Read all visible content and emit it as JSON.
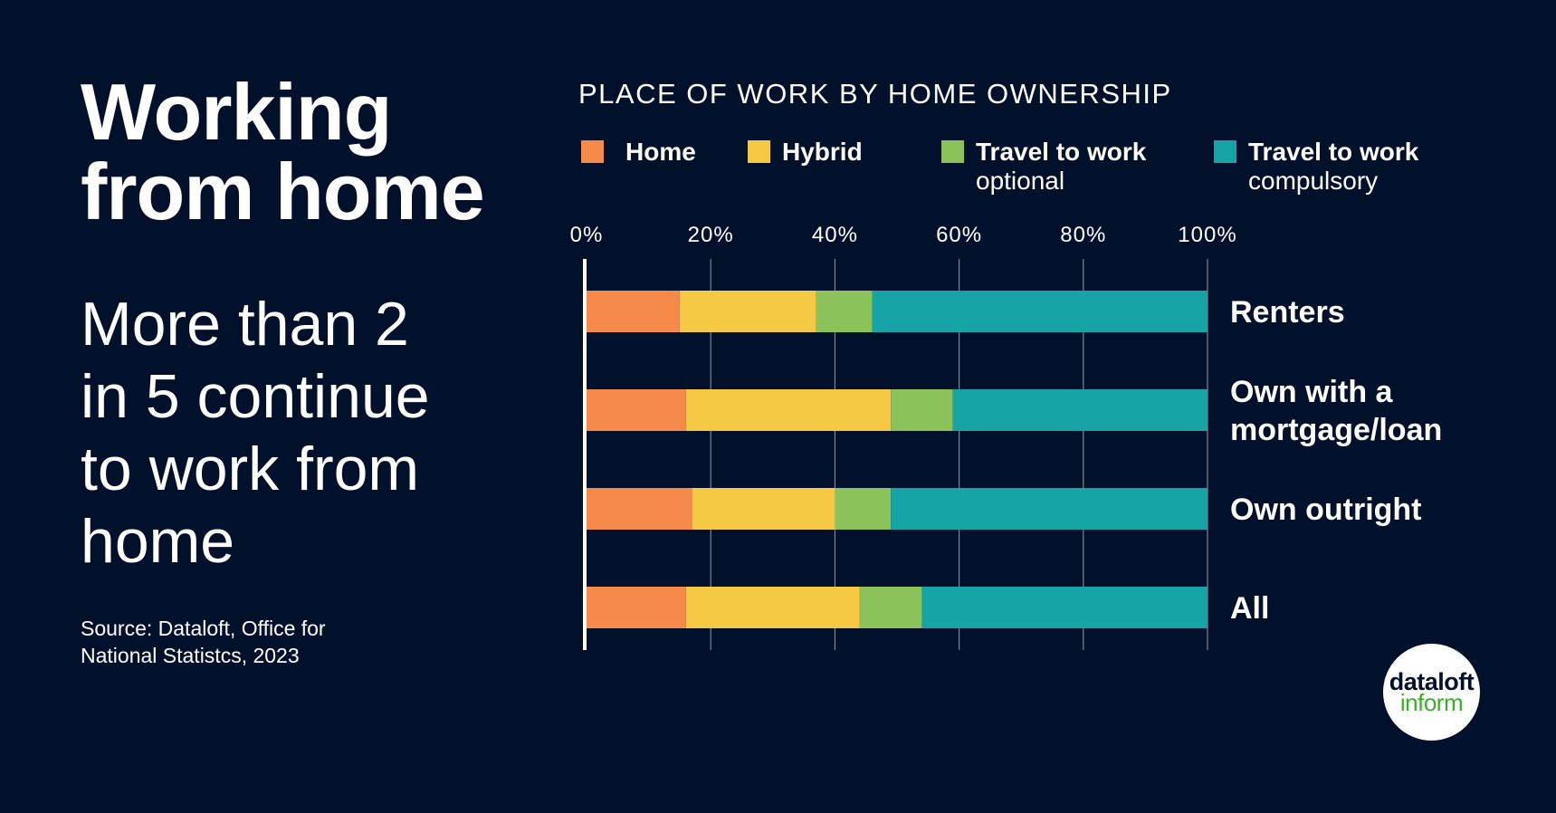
{
  "headline": [
    "Working",
    "from home"
  ],
  "subhead": [
    "More than 2",
    "in 5 continue",
    "to work from",
    "home"
  ],
  "source": [
    "Source: Dataloft, Office for",
    "National Statistcs, 2023"
  ],
  "logo": {
    "line1": "dataloft",
    "line2": "inform"
  },
  "chart_data": {
    "type": "bar",
    "orientation": "horizontal",
    "stacked": true,
    "title": "PLACE OF WORK BY HOME OWNERSHIP",
    "categories": [
      "Renters",
      "Own with a mortgage/loan",
      "Own outright",
      "All"
    ],
    "category_labels": [
      [
        "Renters"
      ],
      [
        "Own with a",
        "mortgage/loan"
      ],
      [
        "Own outright"
      ],
      [
        "All"
      ]
    ],
    "xlim": [
      0,
      100
    ],
    "ticks": [
      "0%",
      "20%",
      "40%",
      "60%",
      "80%",
      "100%"
    ],
    "tick_values": [
      0,
      20,
      40,
      60,
      80,
      100
    ],
    "grid": true,
    "legend_position": "top",
    "series": [
      {
        "name": "Home",
        "label": [
          "Home"
        ],
        "color": "#f68a4b",
        "values": [
          15,
          16,
          17,
          16
        ]
      },
      {
        "name": "Hybrid",
        "label": [
          "Hybrid"
        ],
        "color": "#f6c944",
        "values": [
          22,
          33,
          23,
          28
        ]
      },
      {
        "name": "Travel to work optional",
        "label": [
          "Travel to work",
          "optional"
        ],
        "color": "#8bc25a",
        "values": [
          9,
          10,
          9,
          10
        ]
      },
      {
        "name": "Travel to work compulsory",
        "label": [
          "Travel to work",
          "compulsory"
        ],
        "color": "#16a4a7",
        "values": [
          54,
          41,
          51,
          46
        ]
      }
    ]
  }
}
